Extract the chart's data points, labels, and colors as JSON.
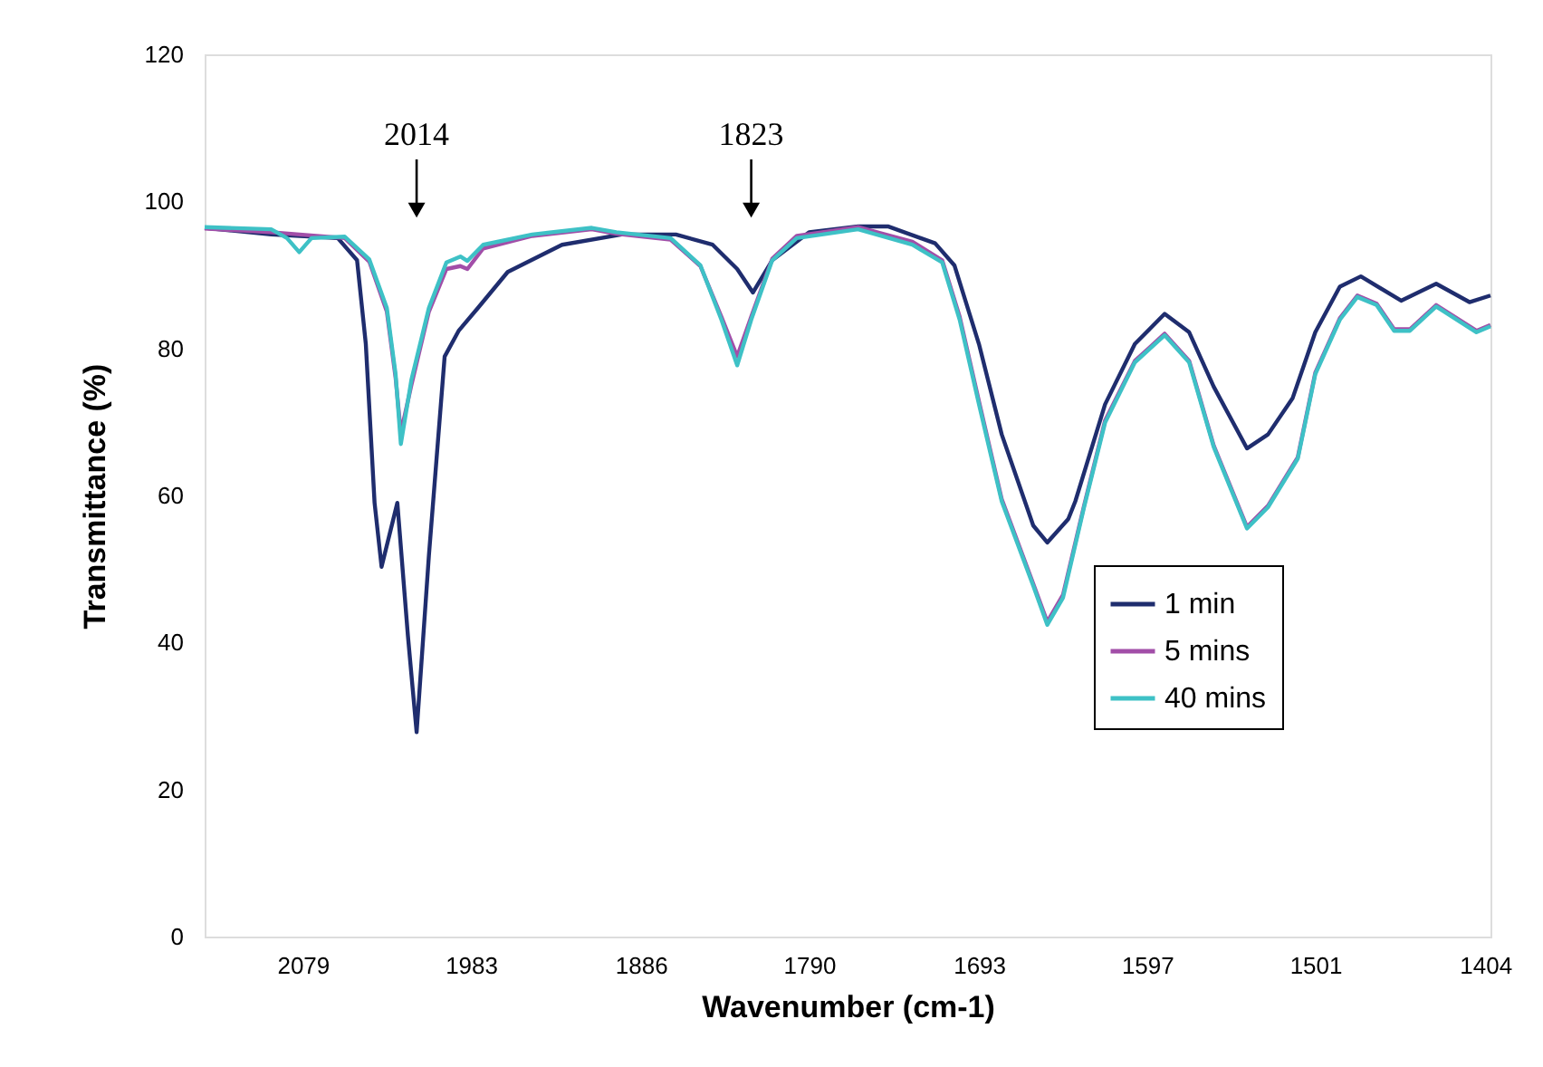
{
  "chart_data": {
    "type": "line",
    "xlabel": "Wavenumber (cm-1)",
    "ylabel": "Transmittance (%)",
    "xlim": [
      2135,
      1401
    ],
    "xticks": [
      2079,
      1983,
      1886,
      1790,
      1693,
      1597,
      1501,
      1404
    ],
    "ylim": [
      0,
      120
    ],
    "yticks": [
      0,
      20,
      40,
      60,
      80,
      100,
      120
    ],
    "grid": false,
    "legend": "bottom right",
    "marker": "none",
    "line_style": "solid",
    "annotations": [
      "2014",
      "1823"
    ],
    "series": [
      {
        "name": "1 min",
        "color": "#1f2d6e",
        "x": [
          2135,
          2097,
          2059,
          2048,
          2043,
          2038,
          2034,
          2025,
          2019,
          2014,
          2007,
          1998,
          1990,
          1979,
          1962,
          1931,
          1897,
          1866,
          1845,
          1831,
          1822,
          1811,
          1790,
          1762,
          1745,
          1718,
          1707,
          1693,
          1680,
          1662,
          1654,
          1642,
          1638,
          1621,
          1604,
          1587,
          1573,
          1559,
          1540,
          1528,
          1514,
          1501,
          1487,
          1475,
          1452,
          1432,
          1413,
          1401
        ],
        "values": [
          96.4,
          95.5,
          95.0,
          92,
          80.6,
          59,
          50.3,
          59,
          41,
          27.8,
          51.8,
          78.9,
          82.4,
          85.5,
          90.4,
          94.1,
          95.5,
          95.5,
          94.1,
          90.8,
          87.6,
          92,
          95.8,
          96.6,
          96.6,
          94.3,
          91.3,
          80.6,
          68.3,
          55.9,
          53.6,
          56.8,
          59.2,
          72.4,
          80.6,
          84.7,
          82.2,
          74.8,
          66.4,
          68.3,
          73.2,
          82.2,
          88.4,
          89.8,
          86.5,
          88.8,
          86.3,
          87.2
        ]
      },
      {
        "name": "5 mins",
        "color": "#a24ea8",
        "x": [
          2135,
          2097,
          2055,
          2041,
          2031,
          2026,
          2023,
          2017,
          2007,
          1997,
          1989,
          1985,
          1976,
          1948,
          1914,
          1900,
          1869,
          1852,
          1840,
          1831,
          1823,
          1811,
          1797,
          1762,
          1731,
          1714,
          1704,
          1693,
          1680,
          1662,
          1654,
          1645,
          1633,
          1621,
          1604,
          1587,
          1573,
          1559,
          1540,
          1528,
          1511,
          1501,
          1487,
          1477,
          1466,
          1456,
          1447,
          1432,
          1409,
          1401
        ],
        "values": [
          96.3,
          95.8,
          95.0,
          91.8,
          85,
          76,
          68.5,
          75,
          85,
          90.8,
          91.2,
          90.8,
          93.6,
          95.3,
          96.2,
          95.6,
          94.8,
          91.2,
          84.3,
          78.9,
          84.3,
          92.2,
          95.3,
          96.5,
          94.5,
          92.0,
          84.3,
          72.8,
          59.5,
          48,
          42.8,
          46.5,
          58.6,
          70.2,
          78.3,
          82.0,
          78.3,
          66.8,
          55.7,
          58.6,
          65.2,
          76.7,
          84.1,
          87.2,
          86.1,
          82.6,
          82.6,
          85.9,
          82.4,
          83.2
        ]
      },
      {
        "name": "40 mins",
        "color": "#3ec1c6",
        "x": [
          2135,
          2097,
          2088,
          2081,
          2074,
          2055,
          2041,
          2031,
          2026,
          2023,
          2017,
          2007,
          1997,
          1989,
          1985,
          1976,
          1948,
          1914,
          1900,
          1869,
          1852,
          1840,
          1831,
          1823,
          1811,
          1797,
          1762,
          1731,
          1714,
          1704,
          1693,
          1680,
          1662,
          1654,
          1645,
          1633,
          1621,
          1604,
          1587,
          1573,
          1559,
          1540,
          1528,
          1511,
          1501,
          1487,
          1477,
          1466,
          1456,
          1447,
          1432,
          1409,
          1401
        ],
        "values": [
          96.5,
          96.2,
          95,
          93.1,
          95,
          95.2,
          92.1,
          85.5,
          76.5,
          67,
          75.7,
          85.5,
          91.7,
          92.5,
          91.9,
          94.1,
          95.5,
          96.4,
          95.8,
          95,
          91.3,
          83.9,
          77.7,
          83.9,
          92,
          95,
          96.2,
          94.1,
          91.7,
          83.9,
          72.4,
          59.2,
          47.7,
          42.4,
          46.1,
          58.4,
          69.9,
          78.1,
          81.8,
          78.1,
          66.6,
          55.5,
          58.4,
          65,
          76.5,
          83.9,
          87,
          85.9,
          82.4,
          82.4,
          85.7,
          82.2,
          83
        ]
      }
    ]
  }
}
